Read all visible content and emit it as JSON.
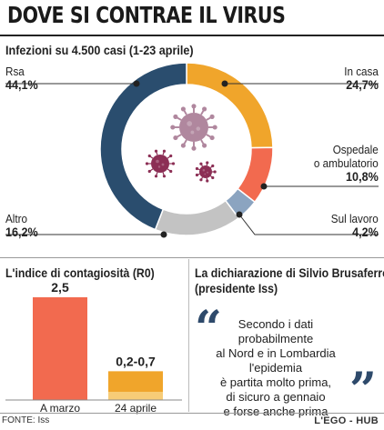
{
  "title": "DOVE SI CONTRAE IL VIRUS",
  "donut_subtitle": "Infezioni su 4.500 casi (1-23 aprile)",
  "colors": {
    "navy": "#2a4d6e",
    "orange": "#f0a52b",
    "salmon": "#f26a4f",
    "steel": "#8ba4c0",
    "grey": "#c3c3c3",
    "virus_big": "#b0879e",
    "virus_small": "#8c2f55",
    "bar_red": "#f26a4f",
    "bar_orange": "#f0a52b",
    "bar_orange_light": "#f7cc77"
  },
  "chart_data": [
    {
      "type": "pie",
      "title": "Infezioni su 4.500 casi (1-23 aprile)",
      "slices": [
        {
          "name": "In casa",
          "value": 24.7,
          "label": "24,7%",
          "color": "#f0a52b"
        },
        {
          "name": "Ospedale o ambulatorio",
          "value": 10.8,
          "label": "10,8%",
          "color": "#f26a4f"
        },
        {
          "name": "Sul lavoro",
          "value": 4.2,
          "label": "4,2%",
          "color": "#8ba4c0"
        },
        {
          "name": "Altro",
          "value": 16.2,
          "label": "16,2%",
          "color": "#c3c3c3"
        },
        {
          "name": "Rsa",
          "value": 44.1,
          "label": "44,1%",
          "color": "#2a4d6e"
        }
      ]
    },
    {
      "type": "bar",
      "title": "L'indice di contagiosità (R0)",
      "categories": [
        "A marzo",
        "24 aprile"
      ],
      "values": [
        2.5,
        0.7
      ],
      "range_low": [
        null,
        0.2
      ],
      "value_labels": [
        "2,5",
        "0,2-0,7"
      ],
      "ylim": [
        0,
        2.5
      ]
    }
  ],
  "labels": {
    "rsa": {
      "name": "Rsa",
      "value": "44,1%"
    },
    "in_casa": {
      "name": "In casa",
      "value": "24,7%"
    },
    "ospedale": {
      "name1": "Ospedale",
      "name2": "o ambulatorio",
      "value": "10,8%"
    },
    "lavoro": {
      "name": "Sul lavoro",
      "value": "4,2%"
    },
    "altro": {
      "name": "Altro",
      "value": "16,2%"
    }
  },
  "r0": {
    "title": "L'indice di contagiosità (R0)"
  },
  "quote": {
    "heading1": "La dichiarazione di Silvio Brusaferro",
    "heading2": "(presidente Iss)",
    "lines": [
      "Secondo i dati probabilmente",
      "al Nord e in Lombardia l'epidemia",
      "è partita molto prima,",
      "di sicuro a gennaio",
      "e forse anche prima"
    ],
    "open_mark": "“",
    "close_mark": "”"
  },
  "footer": {
    "source": "FONTE: Iss",
    "brand": "L'EGO - HUB"
  }
}
